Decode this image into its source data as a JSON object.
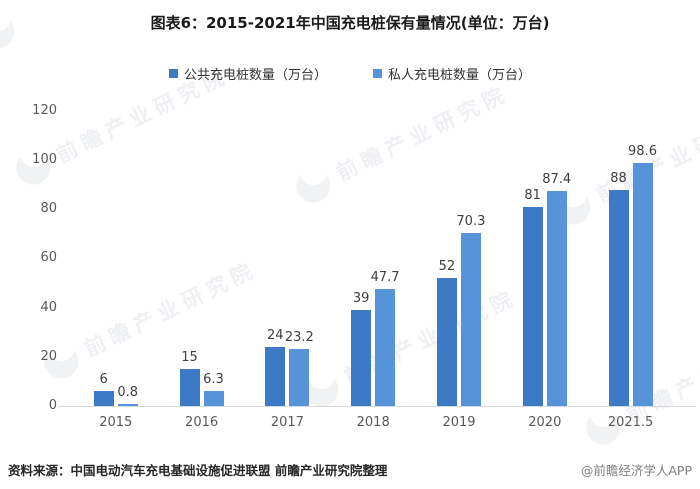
{
  "page": {
    "title": "图表6：2015-2021年中国充电桩保有量情况(单位：万台)"
  },
  "chart_data": {
    "type": "bar",
    "title": "图表6：2015-2021年中国充电桩保有量情况(单位：万台)",
    "categories": [
      "2015",
      "2016",
      "2017",
      "2018",
      "2019",
      "2020",
      "2021.5"
    ],
    "series": [
      {
        "name": "公共充电桩数量（万台）",
        "color": "#3c7ac6",
        "values": [
          6,
          15,
          24,
          39,
          52,
          81,
          88
        ]
      },
      {
        "name": "私人充电桩数量（万台）",
        "color": "#5793d8",
        "values": [
          0.8,
          6.3,
          23.2,
          47.7,
          70.3,
          87.4,
          98.6
        ]
      }
    ],
    "xlabel": "",
    "ylabel": "",
    "ylim": [
      0,
      120
    ],
    "yticks": [
      0,
      20,
      40,
      60,
      80,
      100,
      120
    ],
    "grid": false,
    "legend_position": "top",
    "value_labels": true
  },
  "footer": {
    "source": "资料来源：中国电动汽车充电基础设施促进联盟 前瞻产业研究院整理",
    "handle": "@前瞻经济学人APP"
  },
  "watermark": {
    "text": "前瞻产业研究院"
  }
}
